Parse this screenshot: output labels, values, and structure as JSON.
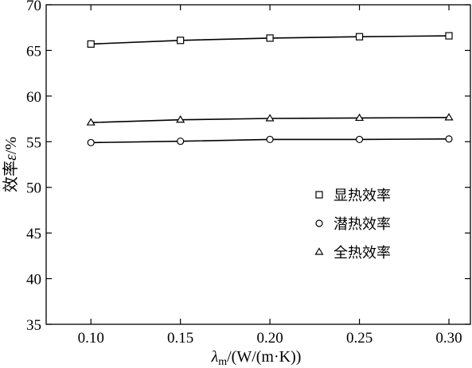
{
  "chart_data": {
    "type": "line",
    "xlabel": "λm/(W/(m·K))",
    "xlabel_main": "λ",
    "xlabel_sub": "m",
    "xlabel_rest": "/(W/(m·K))",
    "ylabel": "效率ε/%",
    "ylabel_main": "效率",
    "ylabel_var": "ε",
    "ylabel_rest": "/%",
    "xlim": [
      0.075,
      0.312
    ],
    "ylim": [
      35,
      70
    ],
    "x_ticks": [
      0.1,
      0.15,
      0.2,
      0.25,
      0.3
    ],
    "x_tick_labels": [
      "0.10",
      "0.15",
      "0.20",
      "0.25",
      "0.30"
    ],
    "y_ticks": [
      35,
      40,
      45,
      50,
      55,
      60,
      65,
      70
    ],
    "y_tick_labels": [
      "35",
      "40",
      "45",
      "50",
      "55",
      "60",
      "65",
      "70"
    ],
    "legend_position": "right-center",
    "grid": false,
    "x": [
      0.1,
      0.15,
      0.2,
      0.25,
      0.3
    ],
    "series": [
      {
        "name": "显热效率",
        "marker": "square",
        "values": [
          65.7,
          66.1,
          66.35,
          66.5,
          66.6
        ]
      },
      {
        "name": "潜热效率",
        "marker": "circle",
        "values": [
          54.9,
          55.05,
          55.25,
          55.25,
          55.3
        ]
      },
      {
        "name": "全热效率",
        "marker": "triangle",
        "values": [
          57.1,
          57.4,
          57.55,
          57.6,
          57.65
        ]
      }
    ]
  }
}
